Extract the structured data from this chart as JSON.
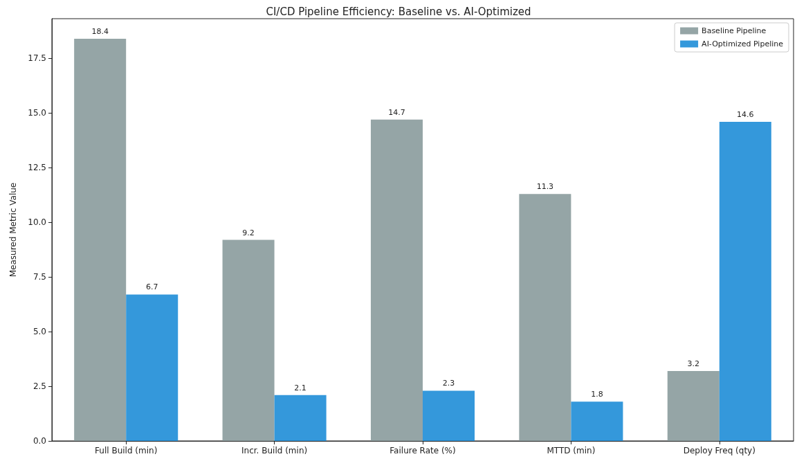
{
  "chart_data": {
    "type": "bar",
    "title": "CI/CD Pipeline Efficiency: Baseline vs. AI-Optimized",
    "ylabel": "Measured Metric Value",
    "categories": [
      "Full Build (min)",
      "Incr. Build (min)",
      "Failure Rate (%)",
      "MTTD (min)",
      "Deploy Freq (qty)"
    ],
    "series": [
      {
        "name": "Baseline Pipeline",
        "color": "#95a5a6",
        "values": [
          18.4,
          9.2,
          14.7,
          11.3,
          3.2
        ]
      },
      {
        "name": "AI-Optimized Pipeline",
        "color": "#3498db",
        "values": [
          6.7,
          2.1,
          2.3,
          1.8,
          14.6
        ]
      }
    ],
    "ylim": [
      0,
      19.32
    ],
    "yticks": [
      {
        "value": 0,
        "label": "0.0"
      },
      2.5,
      {
        "value": 5,
        "label": "5.0"
      },
      7.5,
      {
        "value": 10,
        "label": "10.0"
      },
      12.5,
      {
        "value": 15,
        "label": "15.0"
      },
      17.5
    ],
    "data_labels": true,
    "legend": "top right",
    "grid": false
  }
}
